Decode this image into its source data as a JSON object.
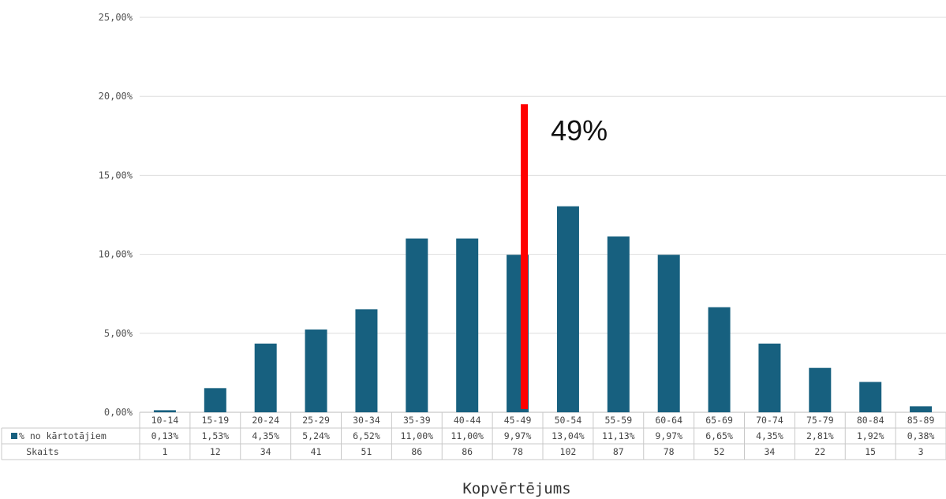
{
  "chart_data": {
    "type": "bar",
    "categories": [
      "10-14",
      "15-19",
      "20-24",
      "25-29",
      "30-34",
      "35-39",
      "40-44",
      "45-49",
      "50-54",
      "55-59",
      "60-64",
      "65-69",
      "70-74",
      "75-79",
      "80-84",
      "85-89"
    ],
    "series": [
      {
        "name": "% no kārtotājiem",
        "values": [
          0.13,
          1.53,
          4.35,
          5.24,
          6.52,
          11.0,
          11.0,
          9.97,
          13.04,
          11.13,
          9.97,
          6.65,
          4.35,
          2.81,
          1.92,
          0.38
        ],
        "labels": [
          "0,13%",
          "1,53%",
          "4,35%",
          "5,24%",
          "6,52%",
          "11,00%",
          "11,00%",
          "9,97%",
          "13,04%",
          "11,13%",
          "9,97%",
          "6,65%",
          "4,35%",
          "2,81%",
          "1,92%",
          "0,38%"
        ],
        "color": "#17607f"
      }
    ],
    "table_rows": [
      {
        "name": "Skaits",
        "values": [
          "1",
          "12",
          "34",
          "41",
          "51",
          "86",
          "86",
          "78",
          "102",
          "87",
          "78",
          "52",
          "34",
          "22",
          "15",
          "3"
        ]
      }
    ],
    "y_ticks": [
      "0,00%",
      "5,00%",
      "10,00%",
      "15,00%",
      "20,00%",
      "25,00%"
    ],
    "ylim": [
      0,
      25
    ],
    "xlabel": "Kopvērtējums",
    "ylabel": "",
    "grid": true,
    "marker": {
      "label": "49%",
      "category": "45-49",
      "color": "#ff0000",
      "top_value": 19.5
    }
  }
}
